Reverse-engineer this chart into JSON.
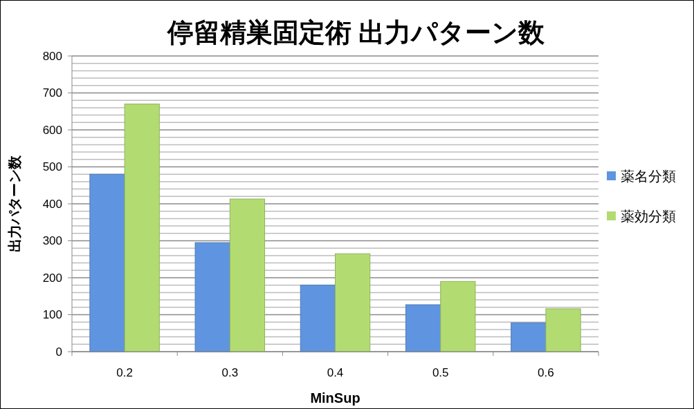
{
  "chart_data": {
    "type": "bar",
    "title": "停留精巣固定術 出力パターン数",
    "xlabel": "MinSup",
    "ylabel": "出力パターン数",
    "categories": [
      "0.2",
      "0.3",
      "0.4",
      "0.5",
      "0.6"
    ],
    "series": [
      {
        "name": "薬名分類",
        "color": "#5f95e0",
        "values": [
          480,
          295,
          180,
          127,
          78
        ]
      },
      {
        "name": "薬効分類",
        "color": "#b2dc72",
        "values": [
          670,
          413,
          265,
          190,
          116
        ]
      }
    ],
    "ylim": [
      0,
      800
    ],
    "yticks": [
      0,
      {
        "value": 20,
        "label": null
      },
      {
        "value": 40,
        "label": null
      },
      {
        "value": 60,
        "label": null
      },
      {
        "value": 80,
        "label": null
      },
      100,
      {
        "value": 120,
        "label": null
      },
      {
        "value": 140,
        "label": null
      },
      {
        "value": 160,
        "label": null
      },
      {
        "value": 180,
        "label": null
      },
      200,
      {
        "value": 220,
        "label": null
      },
      {
        "value": 240,
        "label": null
      },
      {
        "value": 260,
        "label": null
      },
      {
        "value": 280,
        "label": null
      },
      300,
      {
        "value": 320,
        "label": null
      },
      {
        "value": 340,
        "label": null
      },
      {
        "value": 360,
        "label": null
      },
      {
        "value": 380,
        "label": null
      },
      400,
      {
        "value": 420,
        "label": null
      },
      {
        "value": 440,
        "label": null
      },
      {
        "value": 460,
        "label": null
      },
      {
        "value": 480,
        "label": null
      },
      500,
      {
        "value": 520,
        "label": null
      },
      {
        "value": 540,
        "label": null
      },
      {
        "value": 560,
        "label": null
      },
      {
        "value": 580,
        "label": null
      },
      600,
      {
        "value": 620,
        "label": null
      },
      {
        "value": 640,
        "label": null
      },
      {
        "value": 660,
        "label": null
      },
      {
        "value": 680,
        "label": null
      },
      700,
      {
        "value": 720,
        "label": null
      },
      {
        "value": 740,
        "label": null
      },
      {
        "value": 760,
        "label": null
      },
      {
        "value": 780,
        "label": null
      },
      800
    ],
    "grid": true,
    "legend": "right"
  }
}
